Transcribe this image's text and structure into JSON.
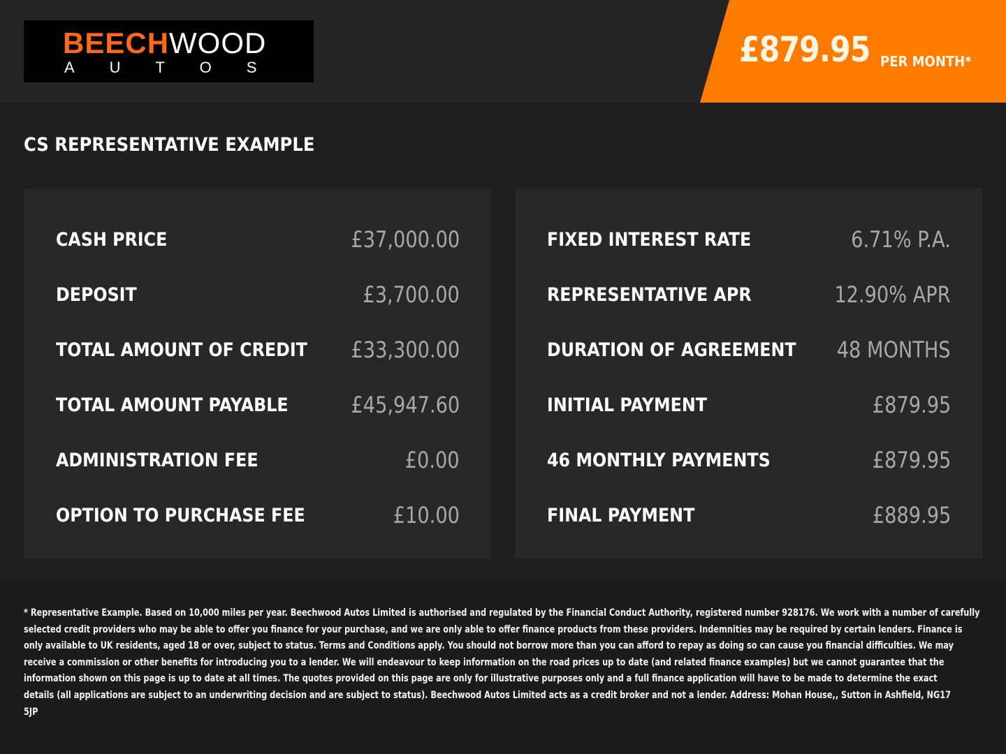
{
  "logo": {
    "word_a": "BEECH",
    "word_b": "WOOD",
    "sub": "AUTOS"
  },
  "price_banner": {
    "amount": "£879.95",
    "label": "PER MONTH*"
  },
  "section_title": "CS REPRESENTATIVE EXAMPLE",
  "left_panel": [
    {
      "label": "CASH PRICE",
      "value": "£37,000.00"
    },
    {
      "label": "DEPOSIT",
      "value": "£3,700.00"
    },
    {
      "label": "TOTAL AMOUNT OF CREDIT",
      "value": "£33,300.00"
    },
    {
      "label": "TOTAL AMOUNT PAYABLE",
      "value": "£45,947.60"
    },
    {
      "label": "ADMINISTRATION FEE",
      "value": "£0.00"
    },
    {
      "label": "OPTION TO PURCHASE FEE",
      "value": "£10.00"
    }
  ],
  "right_panel": [
    {
      "label": "FIXED INTEREST RATE",
      "value": "6.71% P.A."
    },
    {
      "label": "REPRESENTATIVE APR",
      "value": "12.90% APR"
    },
    {
      "label": "DURATION OF AGREEMENT",
      "value": "48 MONTHS"
    },
    {
      "label": "INITIAL PAYMENT",
      "value": "£879.95"
    },
    {
      "label": "46 MONTHLY PAYMENTS",
      "value": "£879.95"
    },
    {
      "label": "FINAL PAYMENT",
      "value": "£889.95"
    }
  ],
  "disclaimer_lines": [
    "* Representative Example. Based on 10,000 miles per year. Beechwood Autos Limited is authorised and regulated by the Financial Conduct Authority, registered number 928176. We work with a number of carefully",
    "selected credit providers who may be able to offer you finance for your purchase, and we are only able to offer finance products from these providers. Indemnities may be required by certain lenders. Finance is",
    "only available to UK residents, aged 18 or over, subject to status. Terms and Conditions apply. You should not borrow more than you can afford to repay as doing so can cause you financial difficulties. We may",
    "receive a commission or other benefits for introducing you to a lender. We will endeavour to keep information on the road prices up to date (and related finance examples) but we cannot guarantee that the",
    "information shown on this page is up to date at all times. The quotes provided on this page are only for illustrative purposes only and a full finance application will have to be made to determine the exact",
    "details (all applications are subject to an underwriting decision and are subject to status). Beechwood Autos Limited acts as a credit broker and not a lender. Address: Mohan House,, Sutton in Ashfield, NG17",
    "5JP"
  ],
  "colors": {
    "accent": "#ff7a00",
    "logo_orange": "#ff6a1a",
    "background": "#1f1f1f",
    "panel": "#282828",
    "value_text": "#a8a8a8"
  }
}
